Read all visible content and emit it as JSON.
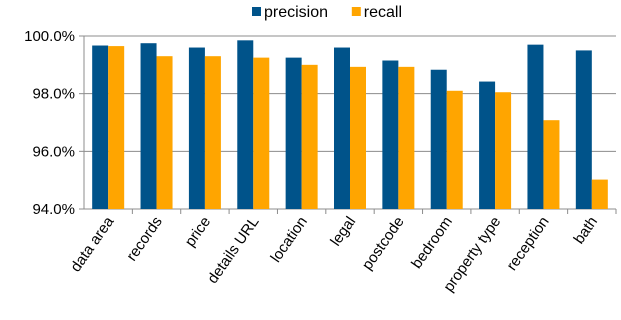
{
  "chart_data": {
    "type": "bar",
    "categories": [
      "data area",
      "records",
      "price",
      "details URL",
      "location",
      "legal",
      "postcode",
      "bedroom",
      "property type",
      "reception",
      "bath"
    ],
    "series": [
      {
        "name": "precision",
        "color": "#00538a",
        "values": [
          99.67,
          99.75,
          99.6,
          99.85,
          99.25,
          99.6,
          99.15,
          98.83,
          98.42,
          99.7,
          99.5
        ]
      },
      {
        "name": "recall",
        "color": "#ffa500",
        "values": [
          99.65,
          99.3,
          99.3,
          99.25,
          99.0,
          98.93,
          98.93,
          98.1,
          98.05,
          97.08,
          95.02
        ]
      }
    ],
    "yticks": [
      "94.0%",
      "96.0%",
      "98.0%",
      "100.0%"
    ],
    "ytick_values": [
      94,
      96,
      98,
      100
    ],
    "ylim": [
      94,
      100
    ],
    "grid": true,
    "legend_position": "top-center"
  }
}
